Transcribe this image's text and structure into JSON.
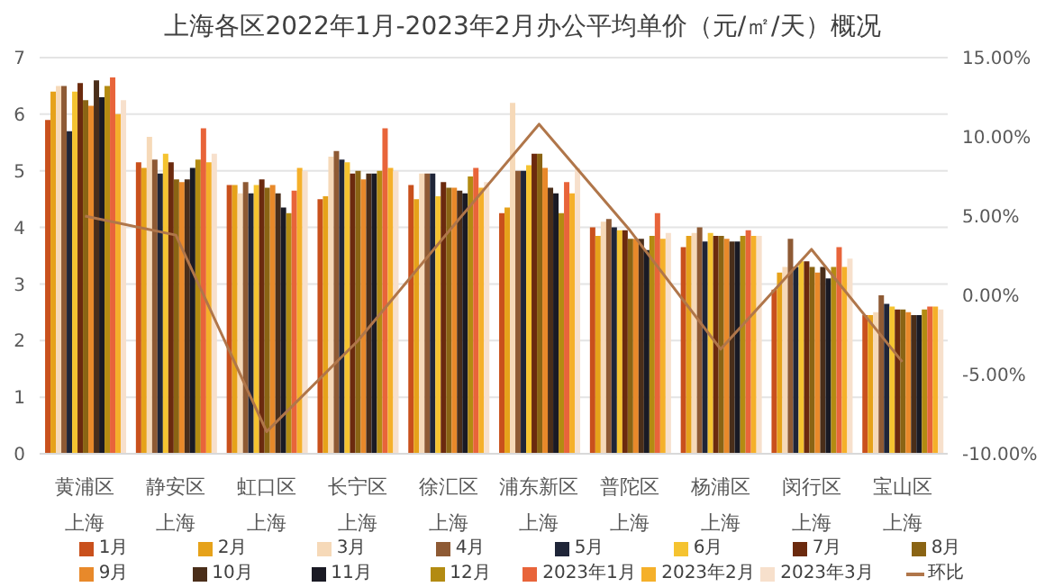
{
  "chart_data": {
    "type": "bar",
    "title": "上海各区2022年1月-2023年2月办公平均单价（元/㎡/天）概况",
    "categories": [
      "黄浦区",
      "静安区",
      "虹口区",
      "长宁区",
      "徐汇区",
      "浦东新区",
      "普陀区",
      "杨浦区",
      "闵行区",
      "宝山区"
    ],
    "annotations": [
      "上海",
      "上海",
      "上海",
      "上海",
      "上海",
      "上海",
      "上海",
      "上海",
      "上海",
      "上海"
    ],
    "series": [
      {
        "name": "1月",
        "color": "#c9501c",
        "values": [
          5.9,
          5.15,
          4.75,
          4.5,
          4.75,
          4.25,
          4.0,
          3.65,
          2.9,
          2.45
        ]
      },
      {
        "name": "2月",
        "color": "#e6a21a",
        "values": [
          6.4,
          5.05,
          4.75,
          4.55,
          4.5,
          4.35,
          3.85,
          3.85,
          3.2,
          2.45
        ]
      },
      {
        "name": "3月",
        "color": "#f6d9b8",
        "values": [
          6.5,
          5.6,
          4.6,
          5.25,
          4.95,
          6.2,
          4.1,
          3.9,
          3.3,
          2.5
        ]
      },
      {
        "name": "4月",
        "color": "#8e5a34",
        "values": [
          6.5,
          5.2,
          4.8,
          5.35,
          4.95,
          5.0,
          4.15,
          4.0,
          3.8,
          2.8
        ]
      },
      {
        "name": "5月",
        "color": "#1f2538",
        "values": [
          5.7,
          4.95,
          4.6,
          5.2,
          4.95,
          5.0,
          4.0,
          3.75,
          3.3,
          2.65
        ]
      },
      {
        "name": "6月",
        "color": "#f5c330",
        "values": [
          6.4,
          5.3,
          4.75,
          5.15,
          4.55,
          5.1,
          3.95,
          3.9,
          3.4,
          2.6
        ]
      },
      {
        "name": "7月",
        "color": "#6b2a0e",
        "values": [
          6.55,
          5.15,
          4.85,
          4.95,
          4.8,
          5.3,
          3.95,
          3.85,
          3.4,
          2.55
        ]
      },
      {
        "name": "8月",
        "color": "#8a6414",
        "values": [
          6.25,
          4.85,
          4.7,
          5.0,
          4.7,
          5.3,
          3.8,
          3.85,
          3.3,
          2.55
        ]
      },
      {
        "name": "9月",
        "color": "#e8892a",
        "values": [
          6.15,
          4.8,
          4.75,
          4.85,
          4.7,
          5.05,
          3.8,
          3.8,
          3.2,
          2.5
        ]
      },
      {
        "name": "10月",
        "color": "#4a2e1a",
        "values": [
          6.6,
          4.85,
          4.6,
          4.95,
          4.65,
          4.7,
          3.8,
          3.75,
          3.3,
          2.45
        ]
      },
      {
        "name": "11月",
        "color": "#1a1a24",
        "values": [
          6.3,
          5.05,
          4.35,
          4.95,
          4.6,
          4.6,
          3.6,
          3.75,
          3.1,
          2.45
        ]
      },
      {
        "name": "12月",
        "color": "#b38b12",
        "values": [
          6.5,
          5.2,
          4.25,
          5.0,
          4.9,
          4.25,
          3.85,
          3.85,
          3.3,
          2.55
        ]
      },
      {
        "name": "2023年1月",
        "color": "#e8643a",
        "values": [
          6.65,
          5.75,
          4.65,
          5.75,
          5.05,
          4.8,
          4.25,
          3.95,
          3.65,
          2.6
        ]
      },
      {
        "name": "2023年2月",
        "color": "#f5b02a",
        "values": [
          6.0,
          5.15,
          5.05,
          5.05,
          4.7,
          4.6,
          3.8,
          3.85,
          3.3,
          2.6
        ]
      },
      {
        "name": "2023年3月",
        "color": "#f7e0cc",
        "values": [
          6.25,
          5.3,
          5.0,
          5.0,
          4.8,
          5.05,
          3.9,
          3.85,
          3.45,
          2.55
        ]
      },
      {
        "name": "环比",
        "type": "line",
        "axis": "y2",
        "color": "#b0764a",
        "values": [
          5.0,
          3.8,
          -8.6,
          -2.9,
          4.0,
          10.8,
          4.1,
          -3.4,
          2.9,
          -4.2
        ]
      }
    ],
    "ylim": [
      0,
      7
    ],
    "yticks": [
      0,
      1,
      2,
      3,
      4,
      5,
      6,
      7
    ],
    "y2lim": [
      -10,
      15
    ],
    "y2ticks": [
      {
        "value": -10,
        "label": "-10.00%"
      },
      {
        "value": -5,
        "label": "-5.00%"
      },
      {
        "value": 0,
        "label": "0.00%"
      },
      {
        "value": 5,
        "label": "5.00%"
      },
      {
        "value": 10,
        "label": "10.00%"
      },
      {
        "value": 15,
        "label": "15.00%"
      }
    ],
    "grid": "y",
    "legend": "bottom",
    "marker": "none"
  }
}
